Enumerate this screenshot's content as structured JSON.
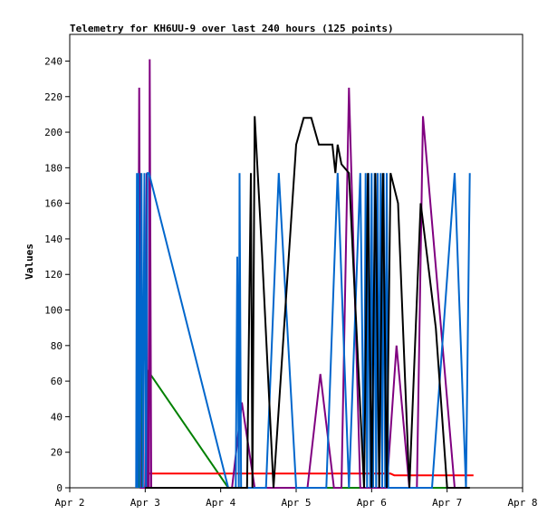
{
  "chart_data": {
    "type": "line",
    "title": "Telemetry for KH6UU-9 over last 240 hours (125 points)",
    "xlabel": "",
    "ylabel": "Values",
    "x_ticks": [
      "Apr 2",
      "Apr 3",
      "Apr 4",
      "Apr 5",
      "Apr 6",
      "Apr 7",
      "Apr 8"
    ],
    "y_ticks": [
      "0",
      "20",
      "40",
      "60",
      "80",
      "100",
      "120",
      "140",
      "160",
      "180",
      "200",
      "220",
      "240"
    ],
    "xlim": [
      2,
      8
    ],
    "ylim": [
      0,
      255
    ],
    "grid": false,
    "legend": "none",
    "series": [
      {
        "color": "#008000",
        "points": [
          [
            2.92,
            0
          ],
          [
            2.93,
            177
          ],
          [
            2.94,
            120
          ],
          [
            2.95,
            0
          ],
          [
            3.0,
            0
          ],
          [
            3.05,
            65
          ],
          [
            4.1,
            0
          ],
          [
            7.3,
            0
          ]
        ]
      },
      {
        "color": "#ff0000",
        "points": [
          [
            3.05,
            8
          ],
          [
            6.25,
            8
          ],
          [
            6.3,
            7
          ],
          [
            7.35,
            7
          ]
        ]
      },
      {
        "color": "#800080",
        "points": [
          [
            2.9,
            0
          ],
          [
            2.92,
            225
          ],
          [
            2.94,
            0
          ],
          [
            3.0,
            0
          ],
          [
            3.02,
            177
          ],
          [
            3.03,
            0
          ],
          [
            3.05,
            0
          ],
          [
            3.06,
            241
          ],
          [
            3.08,
            0
          ],
          [
            4.15,
            0
          ],
          [
            4.28,
            48
          ],
          [
            4.45,
            0
          ],
          [
            5.15,
            0
          ],
          [
            5.32,
            64
          ],
          [
            5.5,
            0
          ],
          [
            5.6,
            0
          ],
          [
            5.7,
            225
          ],
          [
            5.85,
            0
          ],
          [
            6.2,
            0
          ],
          [
            6.33,
            80
          ],
          [
            6.5,
            0
          ],
          [
            6.6,
            0
          ],
          [
            6.68,
            209
          ],
          [
            7.1,
            0
          ],
          [
            7.15,
            0
          ]
        ]
      },
      {
        "color": "#0066cc",
        "points": [
          [
            2.88,
            0
          ],
          [
            2.89,
            177
          ],
          [
            2.9,
            0
          ],
          [
            2.91,
            177
          ],
          [
            2.93,
            0
          ],
          [
            2.95,
            177
          ],
          [
            2.97,
            0
          ],
          [
            2.99,
            177
          ],
          [
            3.01,
            0
          ],
          [
            3.03,
            177
          ],
          [
            3.05,
            177
          ],
          [
            4.1,
            0
          ],
          [
            4.2,
            0
          ],
          [
            4.22,
            130
          ],
          [
            4.24,
            0
          ],
          [
            4.25,
            177
          ],
          [
            4.27,
            0
          ],
          [
            4.6,
            0
          ],
          [
            4.77,
            177
          ],
          [
            5.0,
            0
          ],
          [
            5.4,
            0
          ],
          [
            5.55,
            177
          ],
          [
            5.7,
            0
          ],
          [
            5.85,
            177
          ],
          [
            5.9,
            0
          ],
          [
            5.92,
            177
          ],
          [
            5.94,
            0
          ],
          [
            5.96,
            177
          ],
          [
            5.98,
            0
          ],
          [
            6.0,
            177
          ],
          [
            6.02,
            0
          ],
          [
            6.04,
            177
          ],
          [
            6.06,
            0
          ],
          [
            6.08,
            177
          ],
          [
            6.1,
            0
          ],
          [
            6.12,
            177
          ],
          [
            6.14,
            0
          ],
          [
            6.16,
            177
          ],
          [
            6.18,
            0
          ],
          [
            6.2,
            177
          ],
          [
            6.22,
            0
          ],
          [
            6.5,
            0
          ],
          [
            6.68,
            0
          ],
          [
            6.8,
            0
          ],
          [
            7.1,
            177
          ],
          [
            7.25,
            0
          ],
          [
            7.3,
            177
          ]
        ]
      },
      {
        "color": "#000000",
        "points": [
          [
            3.0,
            0
          ],
          [
            4.35,
            0
          ],
          [
            4.4,
            177
          ],
          [
            4.42,
            0
          ],
          [
            4.45,
            209
          ],
          [
            4.55,
            130
          ],
          [
            4.7,
            0
          ],
          [
            5.0,
            193
          ],
          [
            5.1,
            208
          ],
          [
            5.2,
            208
          ],
          [
            5.3,
            193
          ],
          [
            5.48,
            193
          ],
          [
            5.52,
            177
          ],
          [
            5.55,
            193
          ],
          [
            5.6,
            182
          ],
          [
            5.7,
            177
          ],
          [
            5.9,
            0
          ],
          [
            5.95,
            177
          ],
          [
            6.0,
            0
          ],
          [
            6.05,
            177
          ],
          [
            6.1,
            0
          ],
          [
            6.15,
            177
          ],
          [
            6.2,
            0
          ],
          [
            6.25,
            177
          ],
          [
            6.35,
            160
          ],
          [
            6.5,
            0
          ],
          [
            6.65,
            160
          ],
          [
            6.85,
            90
          ],
          [
            7.0,
            0
          ],
          [
            7.3,
            0
          ]
        ]
      }
    ]
  }
}
